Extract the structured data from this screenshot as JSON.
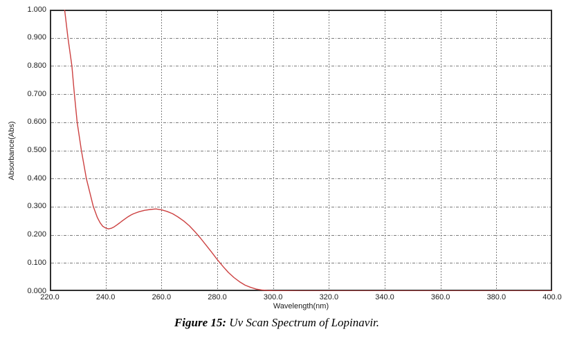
{
  "figure": {
    "caption_label": "Figure 15:",
    "caption_text": " Uv Scan Spectrum of Lopinavir."
  },
  "chart_data": {
    "type": "line",
    "title": "",
    "xlabel": "Wavelength(nm)",
    "ylabel": "Absorbance(Abs)",
    "xlim": [
      220,
      400
    ],
    "ylim": [
      0,
      1
    ],
    "grid": true,
    "legend": "none",
    "x_tick_labels": [
      "220.0",
      "240.0",
      "260.0",
      "280.0",
      "300.0",
      "320.0",
      "340.0",
      "360.0",
      "380.0",
      "400.0"
    ],
    "y_tick_labels": [
      "0.000",
      "0.100",
      "0.200",
      "0.300",
      "0.400",
      "0.500",
      "0.600",
      "0.700",
      "0.800",
      "0.900",
      "1.000"
    ],
    "colors": {
      "line": "#cc4040",
      "grid": "#7a7a7a",
      "spine": "#2f2f2f",
      "background": "#ffffff",
      "text": "#1a1a1a"
    },
    "series": [
      {
        "name": "Lopinavir UV scan",
        "x": [
          225.3,
          226.5,
          227.9,
          228.8,
          229.8,
          231.3,
          233.1,
          235.6,
          237,
          238,
          239,
          240,
          241,
          242,
          243,
          244,
          245,
          246,
          247,
          248,
          249,
          250,
          252,
          254,
          256,
          258,
          260,
          262,
          264,
          266,
          268,
          270,
          272,
          274,
          276,
          278,
          280,
          282,
          284,
          286,
          288,
          290,
          292,
          294,
          296,
          298,
          300,
          310,
          320,
          340,
          360,
          380,
          400
        ],
        "y": [
          1.0,
          0.9,
          0.8,
          0.7,
          0.6,
          0.5,
          0.4,
          0.3,
          0.262,
          0.243,
          0.23,
          0.224,
          0.221,
          0.223,
          0.228,
          0.235,
          0.242,
          0.25,
          0.257,
          0.264,
          0.27,
          0.275,
          0.282,
          0.287,
          0.29,
          0.292,
          0.289,
          0.283,
          0.275,
          0.263,
          0.249,
          0.232,
          0.211,
          0.188,
          0.163,
          0.138,
          0.112,
          0.088,
          0.066,
          0.048,
          0.033,
          0.021,
          0.013,
          0.007,
          0.004,
          0.002,
          0.001,
          0.0,
          0.0,
          0.0,
          0.0,
          0.0,
          0.0
        ]
      }
    ],
    "annotations": {
      "local_min": {
        "x": 240.5,
        "y": 0.222
      },
      "local_max": {
        "x": 258,
        "y": 0.292
      }
    }
  }
}
